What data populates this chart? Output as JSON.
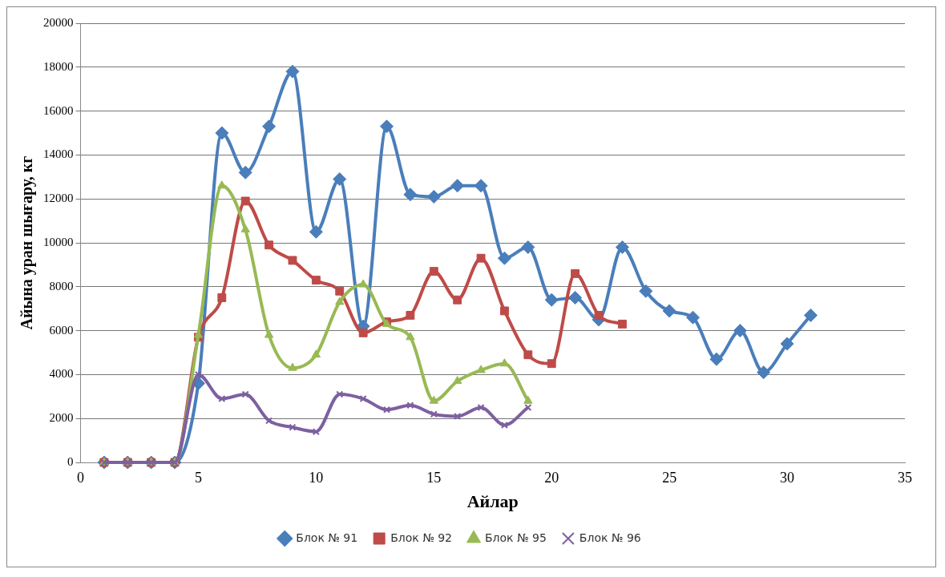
{
  "chart_data": {
    "type": "line",
    "xlabel": "Айлар",
    "ylabel": "Айына уран шығару, кг",
    "xlim": [
      0,
      35
    ],
    "xticks": [
      0,
      5,
      10,
      15,
      20,
      25,
      30,
      35
    ],
    "ylim": [
      0,
      20000
    ],
    "yticks": [
      0,
      2000,
      4000,
      6000,
      8000,
      10000,
      12000,
      14000,
      16000,
      18000,
      20000
    ],
    "grid": "y",
    "legend": "bottom",
    "line_style": "solid",
    "series": [
      {
        "name": "Блок № 91",
        "color": "#4a7ebb",
        "marker": "diamond",
        "x": [
          1,
          2,
          3,
          4,
          5,
          6,
          7,
          8,
          9,
          10,
          11,
          12,
          13,
          14,
          15,
          16,
          17,
          18,
          19,
          20,
          21,
          22,
          23,
          24,
          25,
          26,
          27,
          28,
          29,
          30,
          31
        ],
        "values": [
          0,
          0,
          0,
          0,
          3600,
          15000,
          13200,
          15300,
          17800,
          10500,
          12900,
          6200,
          15300,
          12200,
          12100,
          12600,
          12600,
          9300,
          9800,
          7400,
          7500,
          6500,
          9800,
          7800,
          6900,
          6600,
          4700,
          6000,
          4100,
          5400,
          6700
        ]
      },
      {
        "name": "Блок № 92",
        "color": "#be4b48",
        "marker": "square",
        "x": [
          1,
          2,
          3,
          4,
          5,
          6,
          7,
          8,
          9,
          10,
          11,
          12,
          13,
          14,
          15,
          16,
          17,
          18,
          19,
          20,
          21,
          22,
          23
        ],
        "values": [
          0,
          0,
          0,
          0,
          5700,
          7500,
          11900,
          9900,
          9200,
          8300,
          7800,
          5900,
          6400,
          6700,
          8700,
          7400,
          9300,
          6900,
          4900,
          4500,
          8600,
          6700,
          6300
        ]
      },
      {
        "name": "Блок № 95",
        "color": "#98b954",
        "marker": "triangle",
        "x": [
          1,
          2,
          3,
          4,
          5,
          6,
          7,
          8,
          9,
          10,
          11,
          12,
          13,
          14,
          15,
          16,
          17,
          18,
          19
        ],
        "values": [
          0,
          0,
          0,
          0,
          5800,
          12600,
          10600,
          5800,
          4300,
          4900,
          7300,
          8100,
          6300,
          5700,
          2800,
          3700,
          4200,
          4500,
          2800
        ]
      },
      {
        "name": "Блок № 96",
        "color": "#7d60a0",
        "marker": "cross",
        "x": [
          1,
          2,
          3,
          4,
          5,
          6,
          7,
          8,
          9,
          10,
          11,
          12,
          13,
          14,
          15,
          16,
          17,
          18,
          19
        ],
        "values": [
          0,
          0,
          0,
          0,
          4000,
          2900,
          3100,
          1900,
          1600,
          1400,
          3100,
          2900,
          2400,
          2600,
          2200,
          2100,
          2500,
          1700,
          2500
        ]
      }
    ]
  }
}
